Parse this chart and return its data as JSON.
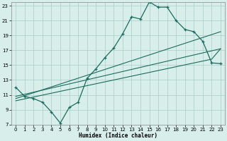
{
  "xlabel": "Humidex (Indice chaleur)",
  "xlim": [
    -0.5,
    23.5
  ],
  "ylim": [
    7,
    23.5
  ],
  "yticks": [
    7,
    9,
    11,
    13,
    15,
    17,
    19,
    21,
    23
  ],
  "xticks": [
    0,
    1,
    2,
    3,
    4,
    5,
    6,
    7,
    8,
    9,
    10,
    11,
    12,
    13,
    14,
    15,
    16,
    17,
    18,
    19,
    20,
    21,
    22,
    23
  ],
  "bg_color": "#d8eeeb",
  "grid_color": "#aaccc7",
  "line_color": "#1a6b5e",
  "line1_x": [
    0,
    1,
    2,
    3,
    4,
    5,
    6,
    7,
    8,
    9,
    10,
    11,
    12,
    13,
    14,
    15,
    16,
    17,
    18,
    19,
    20,
    21,
    22,
    23
  ],
  "line1_y": [
    12.0,
    10.8,
    10.5,
    10.0,
    8.7,
    7.2,
    9.3,
    10.0,
    13.2,
    14.5,
    16.0,
    17.3,
    19.2,
    21.5,
    21.2,
    23.5,
    22.8,
    22.8,
    21.0,
    19.8,
    19.5,
    18.2,
    15.3,
    15.2
  ],
  "line2_x": [
    0,
    23
  ],
  "line2_y": [
    10.5,
    19.5
  ],
  "line3_x": [
    0,
    23
  ],
  "line3_y": [
    10.8,
    17.2
  ],
  "line4_x": [
    0,
    22,
    23
  ],
  "line4_y": [
    10.2,
    15.8,
    17.2
  ]
}
